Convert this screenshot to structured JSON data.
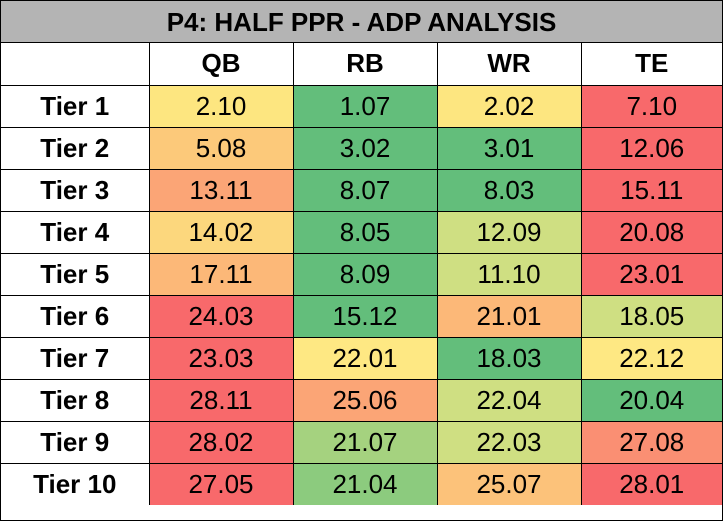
{
  "chart_data": {
    "type": "heatmap",
    "title": "P4: HALF PPR - ADP ANALYSIS",
    "columns": [
      "QB",
      "RB",
      "WR",
      "TE"
    ],
    "rows": [
      "Tier 1",
      "Tier 2",
      "Tier 3",
      "Tier 4",
      "Tier 5",
      "Tier 6",
      "Tier 7",
      "Tier 8",
      "Tier 9",
      "Tier 10"
    ],
    "values": [
      [
        "2.10",
        "1.07",
        "2.02",
        "7.10"
      ],
      [
        "5.08",
        "3.02",
        "3.01",
        "12.06"
      ],
      [
        "13.11",
        "8.07",
        "8.03",
        "15.11"
      ],
      [
        "14.02",
        "8.05",
        "12.09",
        "20.08"
      ],
      [
        "17.11",
        "8.09",
        "11.10",
        "23.01"
      ],
      [
        "24.03",
        "15.12",
        "21.01",
        "18.05"
      ],
      [
        "23.03",
        "22.01",
        "18.03",
        "22.12"
      ],
      [
        "28.11",
        "25.06",
        "22.04",
        "20.04"
      ],
      [
        "28.02",
        "21.07",
        "22.03",
        "27.08"
      ],
      [
        "27.05",
        "21.04",
        "25.07",
        "28.01"
      ]
    ],
    "cell_colors": [
      [
        "#fde680",
        "#63be7b",
        "#fde680",
        "#f8696b"
      ],
      [
        "#fcc97a",
        "#63be7b",
        "#63be7b",
        "#f8696b"
      ],
      [
        "#fba576",
        "#63be7b",
        "#63be7b",
        "#f8696b"
      ],
      [
        "#fcd77d",
        "#63be7b",
        "#cfdf82",
        "#f8696b"
      ],
      [
        "#fcb878",
        "#63be7b",
        "#cfdf82",
        "#f8696b"
      ],
      [
        "#f8696b",
        "#63be7b",
        "#fcb878",
        "#cfdf82"
      ],
      [
        "#f8696b",
        "#fee883",
        "#63be7b",
        "#fee883"
      ],
      [
        "#f8696b",
        "#fba576",
        "#cfdf82",
        "#63be7b"
      ],
      [
        "#f8696b",
        "#a5d27f",
        "#cfdf82",
        "#fa8f73"
      ],
      [
        "#f8696b",
        "#8ccb7e",
        "#fcc27a",
        "#f8696b"
      ]
    ],
    "colors": {
      "green": "#63be7b",
      "yellow": "#fde680",
      "red": "#f8696b",
      "header_bg": "#b4b4b4"
    }
  }
}
